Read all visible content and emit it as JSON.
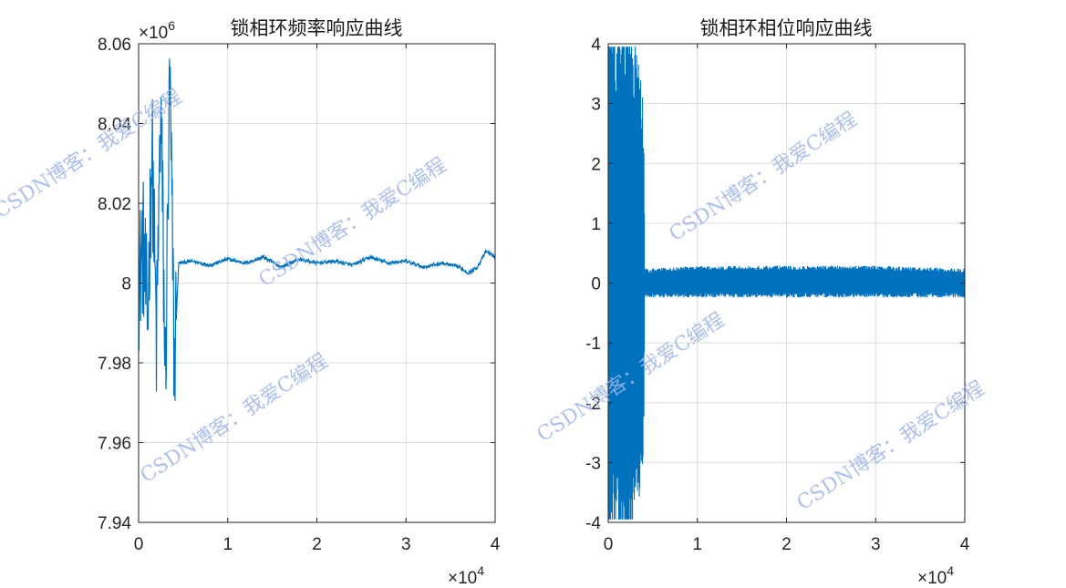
{
  "colors": {
    "line": "#0072BD",
    "grid": "#dcdcdc",
    "axis": "#262626",
    "watermark": "#9fb6e8"
  },
  "watermark": {
    "text": "CSDN博客：我爱C编程"
  },
  "chart_data": [
    {
      "type": "line",
      "title": "锁相环频率响应曲线",
      "xlabel": "",
      "ylabel": "",
      "xlim": [
        0,
        40000
      ],
      "ylim": [
        7940000,
        8060000
      ],
      "x_exponent_label": "×10^4",
      "y_exponent_label": "×10^6",
      "xticks": [
        "0",
        "1",
        "2",
        "3",
        "4"
      ],
      "yticks": [
        "7.94",
        "7.96",
        "7.98",
        "8",
        "8.02",
        "8.04",
        "8.06"
      ],
      "grid": true,
      "series": [
        {
          "x": [
            0,
            500,
            1000,
            1500,
            2000,
            2500,
            3000,
            3500,
            4000,
            4500,
            6000,
            8000,
            10000,
            12000,
            14000,
            16000,
            18000,
            20000,
            22000,
            24000,
            26000,
            28000,
            30000,
            32000,
            34000,
            36000,
            37000,
            38000,
            39000,
            40000
          ],
          "y": [
            8000000,
            8010000,
            7990000,
            8035000,
            7985000,
            8045000,
            7975000,
            8050000,
            7980000,
            8005000,
            8005500,
            8004500,
            8006000,
            8005000,
            8006500,
            8004000,
            8006000,
            8005000,
            8005500,
            8004500,
            8006500,
            8005000,
            8005500,
            8004000,
            8005000,
            8004000,
            8002500,
            8004000,
            8008000,
            8006500
          ]
        }
      ]
    },
    {
      "type": "line",
      "title": "锁相环相位响应曲线",
      "xlabel": "",
      "ylabel": "",
      "xlim": [
        0,
        40000
      ],
      "ylim": [
        -4,
        4
      ],
      "x_exponent_label": "×10^4",
      "xticks": [
        "0",
        "1",
        "2",
        "3",
        "4"
      ],
      "yticks": [
        "-4",
        "-3",
        "-2",
        "-1",
        "0",
        "1",
        "2",
        "3",
        "4"
      ],
      "grid": true,
      "series": [
        {
          "x": [
            0,
            1000,
            2000,
            3000,
            4000,
            4100,
            10000,
            20000,
            30000,
            40000
          ],
          "y_upper": [
            3.6,
            3.3,
            3.7,
            3.3,
            2.2,
            0.2,
            0.25,
            0.25,
            0.25,
            0.2
          ],
          "y_lower": [
            -3.6,
            -3.4,
            -3.9,
            -3.4,
            -2.2,
            -0.2,
            -0.2,
            -0.2,
            -0.2,
            -0.2
          ]
        }
      ]
    }
  ]
}
